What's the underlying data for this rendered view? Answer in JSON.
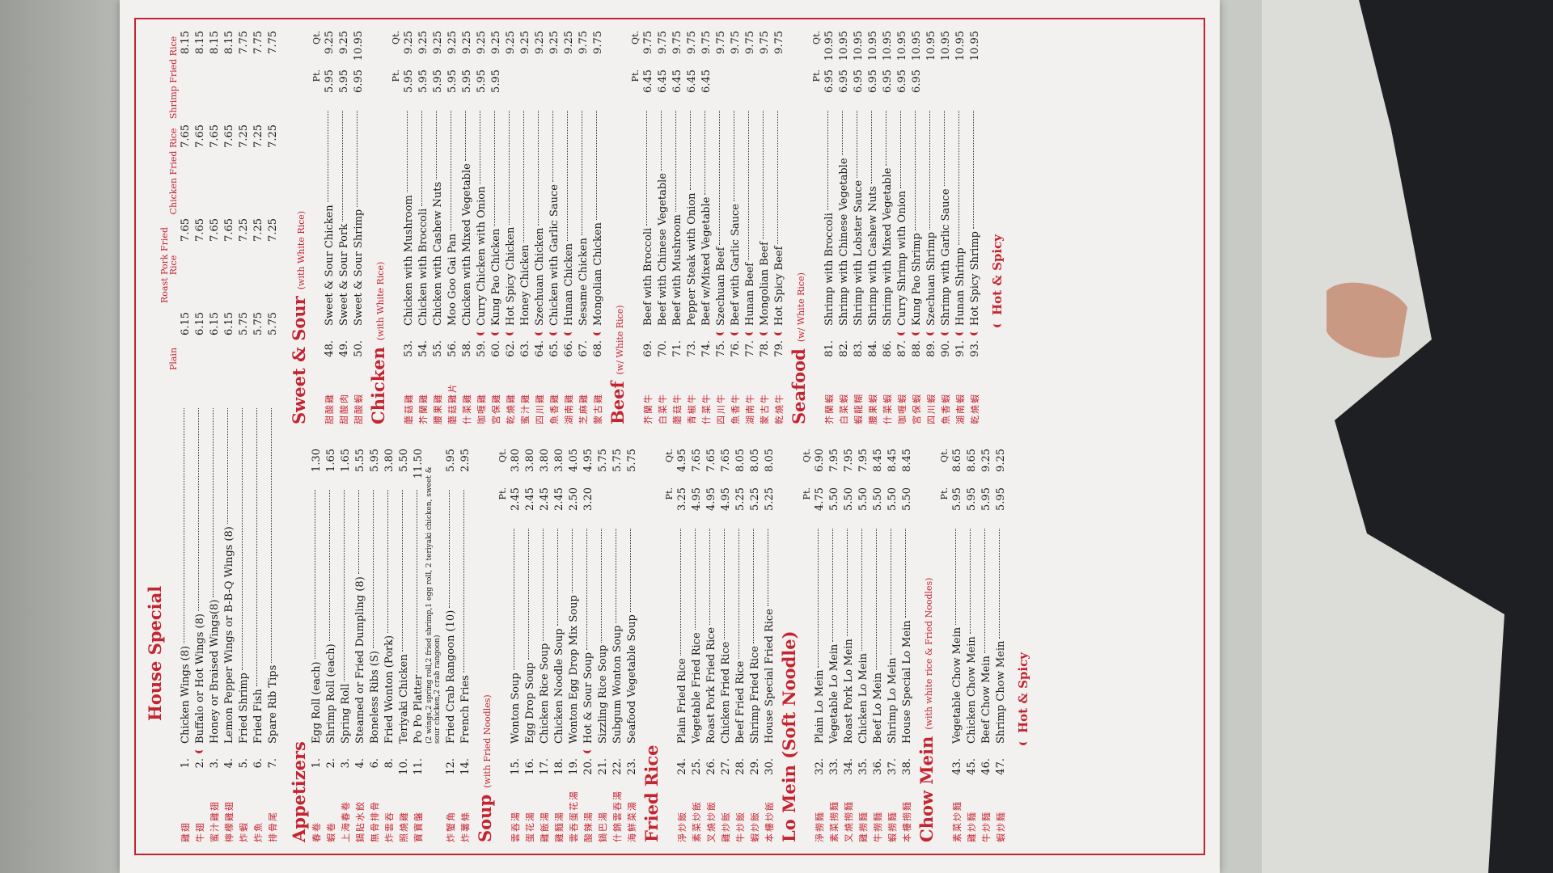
{
  "house_special": {
    "title": "House Special",
    "columns": [
      "Plain",
      "Roast Pork Fried Rice",
      "Chicken Fried Rice",
      "Shrimp Fried Rice"
    ],
    "items": [
      {
        "no": "1.",
        "zh": "雞翅",
        "name": "Chicken Wings (8)",
        "prices": [
          "6.15",
          "7.65",
          "7.65",
          "8.15"
        ]
      },
      {
        "no": "2.",
        "zh": "牛翅",
        "name": "Buffalo or Hot Wings (8)",
        "prices": [
          "6.15",
          "7.65",
          "7.65",
          "8.15"
        ],
        "hot": true
      },
      {
        "no": "3.",
        "zh": "蜜汁雞翅",
        "name": "Honey or Braised Wings(8)",
        "prices": [
          "6.15",
          "7.65",
          "7.65",
          "8.15"
        ]
      },
      {
        "no": "4.",
        "zh": "檸檬雞翅",
        "name": "Lemon Pepper Wings or B-B-Q Wings (8)",
        "prices": [
          "6.15",
          "7.65",
          "7.65",
          "8.15"
        ]
      },
      {
        "no": "5.",
        "zh": "炸蝦",
        "name": "Fried Shrimp",
        "prices": [
          "5.75",
          "7.25",
          "7.25",
          "7.75"
        ]
      },
      {
        "no": "6.",
        "zh": "炸魚",
        "name": "Fried Fish",
        "prices": [
          "5.75",
          "7.25",
          "7.25",
          "7.75"
        ]
      },
      {
        "no": "7.",
        "zh": "排骨尾",
        "name": "Spare Rib Tips",
        "prices": [
          "5.75",
          "7.25",
          "7.25",
          "7.75"
        ]
      }
    ]
  },
  "left": [
    {
      "title": "Appetizers",
      "columns": [],
      "items": [
        {
          "no": "1.",
          "zh": "春卷",
          "name": "Egg Roll (each)",
          "prices": [
            "1.30"
          ]
        },
        {
          "no": "2.",
          "zh": "蝦卷",
          "name": "Shrimp Roll (each)",
          "prices": [
            "1.65"
          ]
        },
        {
          "no": "3.",
          "zh": "上海春卷",
          "name": "Spring Roll",
          "prices": [
            "1.65"
          ]
        },
        {
          "no": "4.",
          "zh": "鍋貼水餃",
          "name": "Steamed or Fried Dumpling (8)",
          "prices": [
            "5.55"
          ]
        },
        {
          "no": "6.",
          "zh": "無骨排骨",
          "name": "Boneless Ribs (S)",
          "prices": [
            "5.95"
          ]
        },
        {
          "no": "8.",
          "zh": "炸雲吞",
          "name": "Fried Wonton (Pork)",
          "prices": [
            "3.80"
          ]
        },
        {
          "no": "10.",
          "zh": "照燒雞",
          "name": "Teriyaki Chicken",
          "prices": [
            "5.50"
          ]
        },
        {
          "no": "11.",
          "zh": "寶寶盤",
          "name": "Po Po Platter",
          "prices": [
            "11.50"
          ],
          "note": "(2 wings,2 spring roll,2 fried shrimp,1 egg roll, 2 teriyaki chicken, sweet & sour chicken,2 crab rangoon)"
        },
        {
          "no": "12.",
          "zh": "炸蟹角",
          "name": "Fried Crab Rangoon (10)",
          "prices": [
            "5.95"
          ]
        },
        {
          "no": "14.",
          "zh": "炸薯條",
          "name": "French Fries",
          "prices": [
            "2.95"
          ]
        }
      ]
    },
    {
      "title": "Soup",
      "subtitle": "(with Fried Noodles)",
      "columns": [
        "Pt.",
        "Qt."
      ],
      "items": [
        {
          "no": "15.",
          "zh": "雲吞湯",
          "name": "Wonton Soup",
          "prices": [
            "2.45",
            "3.80"
          ]
        },
        {
          "no": "16.",
          "zh": "蛋花湯",
          "name": "Egg Drop Soup",
          "prices": [
            "2.45",
            "3.80"
          ]
        },
        {
          "no": "17.",
          "zh": "雞飯湯",
          "name": "Chicken Rice Soup",
          "prices": [
            "2.45",
            "3.80"
          ]
        },
        {
          "no": "18.",
          "zh": "雞麵湯",
          "name": "Chicken Noodle Soup",
          "prices": [
            "2.45",
            "3.80"
          ]
        },
        {
          "no": "19.",
          "zh": "雲吞蛋花湯",
          "name": "Wonton Egg Drop Mix Soup",
          "prices": [
            "2.50",
            "4.05"
          ]
        },
        {
          "no": "20.",
          "zh": "酸辣湯",
          "name": "Hot & Sour Soup",
          "prices": [
            "3.20",
            "4.95"
          ],
          "hot": true
        },
        {
          "no": "21.",
          "zh": "鍋巴湯",
          "name": "Sizzling Rice Soup",
          "prices": [
            "5.75"
          ]
        },
        {
          "no": "22.",
          "zh": "什錦雲吞湯",
          "name": "Subgum Wonton Soup",
          "prices": [
            "5.75"
          ]
        },
        {
          "no": "23.",
          "zh": "海鮮菜湯",
          "name": "Seafood Vegetable Soup",
          "prices": [
            "5.75"
          ]
        }
      ]
    },
    {
      "title": "Fried Rice",
      "columns": [
        "Pt.",
        "Qt."
      ],
      "items": [
        {
          "no": "24.",
          "zh": "淨炒飯",
          "name": "Plain Fried Rice",
          "prices": [
            "3.25",
            "4.95"
          ]
        },
        {
          "no": "25.",
          "zh": "素菜炒飯",
          "name": "Vegetable Fried Rice",
          "prices": [
            "4.95",
            "7.65"
          ]
        },
        {
          "no": "26.",
          "zh": "叉燒炒飯",
          "name": "Roast Pork Fried Rice",
          "prices": [
            "4.95",
            "7.65"
          ]
        },
        {
          "no": "27.",
          "zh": "雞炒飯",
          "name": "Chicken Fried Rice",
          "prices": [
            "4.95",
            "7.65"
          ]
        },
        {
          "no": "28.",
          "zh": "牛炒飯",
          "name": "Beef Fried Rice",
          "prices": [
            "5.25",
            "8.05"
          ]
        },
        {
          "no": "29.",
          "zh": "蝦炒飯",
          "name": "Shrimp Fried Rice",
          "prices": [
            "5.25",
            "8.05"
          ]
        },
        {
          "no": "30.",
          "zh": "本樓炒飯",
          "name": "House Special Fried Rice",
          "prices": [
            "5.25",
            "8.05"
          ]
        }
      ]
    },
    {
      "title": "Lo Mein (Soft Noodle)",
      "columns": [
        "Pt.",
        "Qt."
      ],
      "items": [
        {
          "no": "32.",
          "zh": "淨撈麵",
          "name": "Plain Lo Mein",
          "prices": [
            "4.75",
            "6.90"
          ]
        },
        {
          "no": "33.",
          "zh": "素菜撈麵",
          "name": "Vegetable Lo Mein",
          "prices": [
            "5.50",
            "7.95"
          ]
        },
        {
          "no": "34.",
          "zh": "叉燒撈麵",
          "name": "Roast Pork Lo Mein",
          "prices": [
            "5.50",
            "7.95"
          ]
        },
        {
          "no": "35.",
          "zh": "雞撈麵",
          "name": "Chicken Lo Mein",
          "prices": [
            "5.50",
            "7.95"
          ]
        },
        {
          "no": "36.",
          "zh": "牛撈麵",
          "name": "Beef Lo Mein",
          "prices": [
            "5.50",
            "8.45"
          ]
        },
        {
          "no": "37.",
          "zh": "蝦撈麵",
          "name": "Shrimp Lo Mein",
          "prices": [
            "5.50",
            "8.45"
          ]
        },
        {
          "no": "38.",
          "zh": "本樓撈麵",
          "name": "House Special Lo Mein",
          "prices": [
            "5.50",
            "8.45"
          ]
        }
      ]
    },
    {
      "title": "Chow Mein",
      "subtitle": "(with white rice & Fried Noodles)",
      "columns": [
        "Pt.",
        "Qt."
      ],
      "items": [
        {
          "no": "43.",
          "zh": "素菜炒麵",
          "name": "Vegetable Chow Mein",
          "prices": [
            "5.95",
            "8.65"
          ]
        },
        {
          "no": "45.",
          "zh": "雞炒麵",
          "name": "Chicken Chow Mein",
          "prices": [
            "5.95",
            "8.65"
          ]
        },
        {
          "no": "46.",
          "zh": "牛炒麵",
          "name": "Beef Chow Mein",
          "prices": [
            "5.95",
            "9.25"
          ]
        },
        {
          "no": "47.",
          "zh": "蝦炒麵",
          "name": "Shrimp Chow Mein",
          "prices": [
            "5.95",
            "9.25"
          ]
        }
      ]
    }
  ],
  "left_legend": "Hot & Spicy",
  "right": [
    {
      "title": "Sweet & Sour",
      "subtitle": "(with White Rice)",
      "columns": [
        "Pt.",
        "Qt."
      ],
      "items": [
        {
          "no": "48.",
          "zh": "甜酸雞",
          "name": "Sweet & Sour Chicken",
          "prices": [
            "5.95",
            "9.25"
          ]
        },
        {
          "no": "49.",
          "zh": "甜酸肉",
          "name": "Sweet & Sour Pork",
          "prices": [
            "5.95",
            "9.25"
          ]
        },
        {
          "no": "50.",
          "zh": "甜酸蝦",
          "name": "Sweet & Sour Shrimp",
          "prices": [
            "6.95",
            "10.95"
          ]
        }
      ]
    },
    {
      "title": "Chicken",
      "subtitle": "(with White Rice)",
      "columns": [
        "Pt.",
        "Qt."
      ],
      "items": [
        {
          "no": "53.",
          "zh": "蘑菇雞",
          "name": "Chicken with Mushroom",
          "prices": [
            "5.95",
            "9.25"
          ]
        },
        {
          "no": "54.",
          "zh": "芥蘭雞",
          "name": "Chicken with Broccoli",
          "prices": [
            "5.95",
            "9.25"
          ]
        },
        {
          "no": "55.",
          "zh": "腰果雞",
          "name": "Chicken with Cashew Nuts",
          "prices": [
            "5.95",
            "9.25"
          ]
        },
        {
          "no": "56.",
          "zh": "蘑菇雞片",
          "name": "Moo Goo Gai Pan",
          "prices": [
            "5.95",
            "9.25"
          ]
        },
        {
          "no": "58.",
          "zh": "什菜雞",
          "name": "Chicken with Mixed Vegetable",
          "prices": [
            "5.95",
            "9.25"
          ]
        },
        {
          "no": "59.",
          "zh": "咖喱雞",
          "name": "Curry Chicken with Onion",
          "prices": [
            "5.95",
            "9.25"
          ],
          "hot": true
        },
        {
          "no": "60.",
          "zh": "宮保雞",
          "name": "Kung Pao Chicken",
          "prices": [
            "5.95",
            "9.25"
          ],
          "hot": true
        },
        {
          "no": "62.",
          "zh": "乾燒雞",
          "name": "Hot Spicy Chicken",
          "prices": [
            "9.25"
          ],
          "hot": true
        },
        {
          "no": "63.",
          "zh": "蜜汁雞",
          "name": "Honey Chicken",
          "prices": [
            "9.25"
          ]
        },
        {
          "no": "64.",
          "zh": "四川雞",
          "name": "Szechuan Chicken",
          "prices": [
            "9.25"
          ],
          "hot": true
        },
        {
          "no": "65.",
          "zh": "魚香雞",
          "name": "Chicken with Garlic Sauce",
          "prices": [
            "9.25"
          ],
          "hot": true
        },
        {
          "no": "66.",
          "zh": "湖南雞",
          "name": "Hunan Chicken",
          "prices": [
            "9.25"
          ],
          "hot": true
        },
        {
          "no": "67.",
          "zh": "芝麻雞",
          "name": "Sesame Chicken",
          "prices": [
            "9.75"
          ]
        },
        {
          "no": "68.",
          "zh": "蒙古雞",
          "name": "Mongolian Chicken",
          "prices": [
            "9.75"
          ],
          "hot": true
        }
      ]
    },
    {
      "title": "Beef",
      "subtitle": "(w/ White Rice)",
      "columns": [
        "Pt.",
        "Qt."
      ],
      "items": [
        {
          "no": "69.",
          "zh": "芥蘭牛",
          "name": "Beef with Broccoli",
          "prices": [
            "6.45",
            "9.75"
          ]
        },
        {
          "no": "70.",
          "zh": "白菜牛",
          "name": "Beef with Chinese Vegetable",
          "prices": [
            "6.45",
            "9.75"
          ]
        },
        {
          "no": "71.",
          "zh": "蘑菇牛",
          "name": "Beef with Mushroom",
          "prices": [
            "6.45",
            "9.75"
          ]
        },
        {
          "no": "73.",
          "zh": "青椒牛",
          "name": "Pepper Steak with Onion",
          "prices": [
            "6.45",
            "9.75"
          ]
        },
        {
          "no": "74.",
          "zh": "什菜牛",
          "name": "Beef w/Mixed Vegetable",
          "prices": [
            "6.45",
            "9.75"
          ]
        },
        {
          "no": "75.",
          "zh": "四川牛",
          "name": "Szechuan Beef",
          "prices": [
            "9.75"
          ],
          "hot": true
        },
        {
          "no": "76.",
          "zh": "魚香牛",
          "name": "Beef with Garlic Sauce",
          "prices": [
            "9.75"
          ],
          "hot": true
        },
        {
          "no": "77.",
          "zh": "湖南牛",
          "name": "Hunan Beef",
          "prices": [
            "9.75"
          ],
          "hot": true
        },
        {
          "no": "78.",
          "zh": "蒙古牛",
          "name": "Mongolian Beef",
          "prices": [
            "9.75"
          ],
          "hot": true
        },
        {
          "no": "79.",
          "zh": "乾燒牛",
          "name": "Hot Spicy Beef",
          "prices": [
            "9.75"
          ],
          "hot": true
        }
      ]
    },
    {
      "title": "Seafood",
      "subtitle": "(w/ White Rice)",
      "columns": [
        "Pt.",
        "Qt."
      ],
      "items": [
        {
          "no": "81.",
          "zh": "芥蘭蝦",
          "name": "Shrimp with Broccoli",
          "prices": [
            "6.95",
            "10.95"
          ]
        },
        {
          "no": "82.",
          "zh": "白菜蝦",
          "name": "Shrimp with Chinese Vegetable",
          "prices": [
            "6.95",
            "10.95"
          ]
        },
        {
          "no": "83.",
          "zh": "蝦龍糊",
          "name": "Shrimp with Lobster Sauce",
          "prices": [
            "6.95",
            "10.95"
          ]
        },
        {
          "no": "84.",
          "zh": "腰果蝦",
          "name": "Shrimp with Cashew Nuts",
          "prices": [
            "6.95",
            "10.95"
          ]
        },
        {
          "no": "86.",
          "zh": "什菜蝦",
          "name": "Shrimp with Mixed Vegetable",
          "prices": [
            "6.95",
            "10.95"
          ]
        },
        {
          "no": "87.",
          "zh": "咖喱蝦",
          "name": "Curry Shrimp with Onion",
          "prices": [
            "6.95",
            "10.95"
          ],
          "hot": true
        },
        {
          "no": "88.",
          "zh": "宮保蝦",
          "name": "Kung Pao Shrimp",
          "prices": [
            "6.95",
            "10.95"
          ],
          "hot": true
        },
        {
          "no": "89.",
          "zh": "四川蝦",
          "name": "Szechuan Shrimp",
          "prices": [
            "10.95"
          ],
          "hot": true
        },
        {
          "no": "90.",
          "zh": "魚香蝦",
          "name": "Shrimp with Garlic Sauce",
          "prices": [
            "10.95"
          ],
          "hot": true
        },
        {
          "no": "91.",
          "zh": "湖南蝦",
          "name": "Hunan Shrimp",
          "prices": [
            "10.95"
          ],
          "hot": true
        },
        {
          "no": "93.",
          "zh": "乾燒蝦",
          "name": "Hot Spicy Shrimp",
          "prices": [
            "10.95"
          ],
          "hot": true
        }
      ]
    }
  ],
  "right_legend": "Hot & Spicy"
}
